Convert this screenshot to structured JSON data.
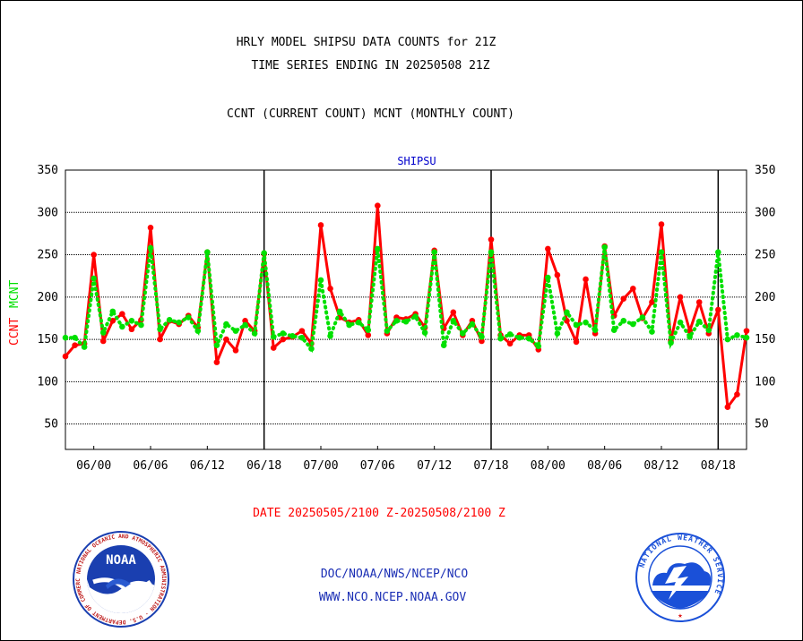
{
  "header": {
    "title_line1": "HRLY MODEL SHIPSU DATA COUNTS for 21Z",
    "title_line2": "TIME SERIES ENDING IN 20250508 21Z",
    "subtitle": "CCNT (CURRENT COUNT) MCNT (MONTHLY COUNT)"
  },
  "footer": {
    "date_range": "DATE 20250505/2100 Z-20250508/2100 Z",
    "org_path": "DOC/NOAA/NWS/NCEP/NCO",
    "website": "WWW.NCO.NCEP.NOAA.GOV"
  },
  "logos": {
    "noaa_text": "NOAA",
    "noaa_ring": "NATIONAL OCEANIC AND ATMOSPHERIC ADMINISTRATION · U.S. DEPARTMENT OF COMMERCE",
    "nws_ring": "NATIONAL WEATHER SERVICE"
  },
  "colors": {
    "ccnt": "#ff0000",
    "mcnt": "#00e000",
    "label_blue": "#0000cc",
    "date_red": "#ff0000",
    "noaa_blue": "#1a3fb0",
    "nws_blue": "#1a50d8"
  },
  "chart_data": {
    "type": "line",
    "title": "SHIPSU",
    "ylabel_ccnt": "CCNT",
    "ylabel_mcnt": "MCNT",
    "ylim": [
      20,
      350
    ],
    "yticks": [
      50,
      100,
      150,
      200,
      250,
      300,
      350
    ],
    "grid": true,
    "x_tick_labels": [
      "06/00",
      "06/06",
      "06/12",
      "06/18",
      "07/00",
      "07/06",
      "07/12",
      "07/18",
      "08/00",
      "08/06",
      "08/12",
      "08/18"
    ],
    "x_tick_hours": [
      27,
      33,
      39,
      45,
      51,
      57,
      63,
      69,
      75,
      81,
      87,
      93
    ],
    "x_range_hours": [
      24,
      96
    ],
    "day_boundaries_hours": [
      45,
      69,
      93
    ],
    "x_hours": [
      24,
      25,
      26,
      27,
      28,
      29,
      30,
      31,
      32,
      33,
      34,
      35,
      36,
      37,
      38,
      39,
      40,
      41,
      42,
      43,
      44,
      45,
      46,
      47,
      48,
      49,
      50,
      51,
      52,
      53,
      54,
      55,
      56,
      57,
      58,
      59,
      60,
      61,
      62,
      63,
      64,
      65,
      66,
      67,
      68,
      69,
      70,
      71,
      72,
      73,
      74,
      75,
      76,
      77,
      78,
      79,
      80,
      81,
      82,
      83,
      84,
      85,
      86,
      87,
      88,
      89,
      90,
      91,
      92,
      93,
      94,
      95,
      96
    ],
    "series": [
      {
        "name": "CCNT",
        "color": "#ff0000",
        "style": "solid",
        "values": [
          130,
          143,
          145,
          250,
          148,
          172,
          180,
          162,
          173,
          282,
          150,
          172,
          168,
          178,
          164,
          253,
          123,
          150,
          137,
          172,
          160,
          251,
          140,
          150,
          153,
          160,
          145,
          285,
          210,
          176,
          170,
          173,
          155,
          308,
          157,
          176,
          174,
          180,
          164,
          255,
          163,
          182,
          155,
          172,
          148,
          268,
          155,
          145,
          155,
          155,
          138,
          257,
          226,
          172,
          147,
          221,
          157,
          260,
          178,
          198,
          210,
          175,
          194,
          286,
          148,
          200,
          160,
          194,
          157,
          185,
          70,
          85,
          160
        ]
      },
      {
        "name": "MCNT",
        "color": "#00e000",
        "style": "dotted",
        "values": [
          152,
          152,
          141,
          222,
          158,
          183,
          165,
          172,
          167,
          258,
          162,
          173,
          170,
          176,
          160,
          253,
          143,
          168,
          160,
          167,
          157,
          252,
          153,
          157,
          154,
          152,
          139,
          220,
          154,
          183,
          167,
          170,
          161,
          257,
          160,
          172,
          171,
          177,
          158,
          253,
          143,
          172,
          157,
          168,
          153,
          253,
          151,
          156,
          152,
          151,
          142,
          223,
          157,
          182,
          167,
          170,
          161,
          259,
          161,
          172,
          168,
          176,
          159,
          253,
          146,
          170,
          153,
          171,
          161,
          253,
          150,
          155,
          152
        ]
      }
    ]
  }
}
